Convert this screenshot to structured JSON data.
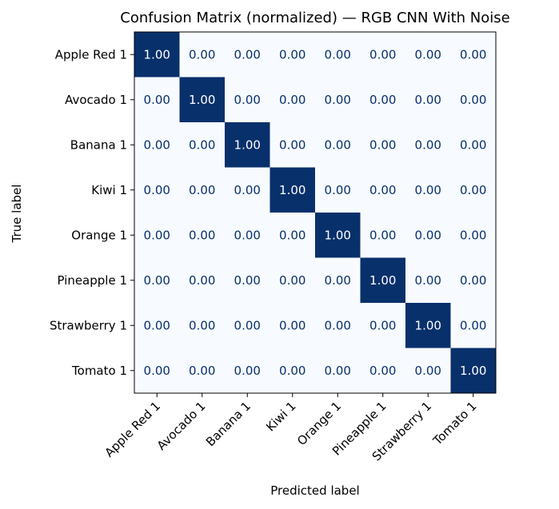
{
  "chart_data": {
    "type": "heatmap",
    "title": "Confusion Matrix (normalized) — RGB CNN With Noise",
    "xlabel": "Predicted label",
    "ylabel": "True label",
    "row_labels": [
      "Apple Red 1",
      "Avocado 1",
      "Banana 1",
      "Kiwi 1",
      "Orange 1",
      "Pineapple 1",
      "Strawberry 1",
      "Tomato 1"
    ],
    "col_labels": [
      "Apple Red 1",
      "Avocado 1",
      "Banana 1",
      "Kiwi 1",
      "Orange 1",
      "Pineapple 1",
      "Strawberry 1",
      "Tomato 1"
    ],
    "values": [
      [
        1,
        0,
        0,
        0,
        0,
        0,
        0,
        0
      ],
      [
        0,
        1,
        0,
        0,
        0,
        0,
        0,
        0
      ],
      [
        0,
        0,
        1,
        0,
        0,
        0,
        0,
        0
      ],
      [
        0,
        0,
        0,
        1,
        0,
        0,
        0,
        0
      ],
      [
        0,
        0,
        0,
        0,
        1,
        0,
        0,
        0
      ],
      [
        0,
        0,
        0,
        0,
        0,
        1,
        0,
        0
      ],
      [
        0,
        0,
        0,
        0,
        0,
        0,
        1,
        0
      ],
      [
        0,
        0,
        0,
        0,
        0,
        0,
        0,
        1
      ]
    ],
    "value_format": "0.00",
    "colormap": "Blues",
    "range": [
      0,
      1
    ],
    "colors": {
      "low": "#f7fbff",
      "high": "#08306b",
      "text_on_dark": "#ffffff",
      "text_on_light": "#08306b"
    },
    "grid": false
  }
}
